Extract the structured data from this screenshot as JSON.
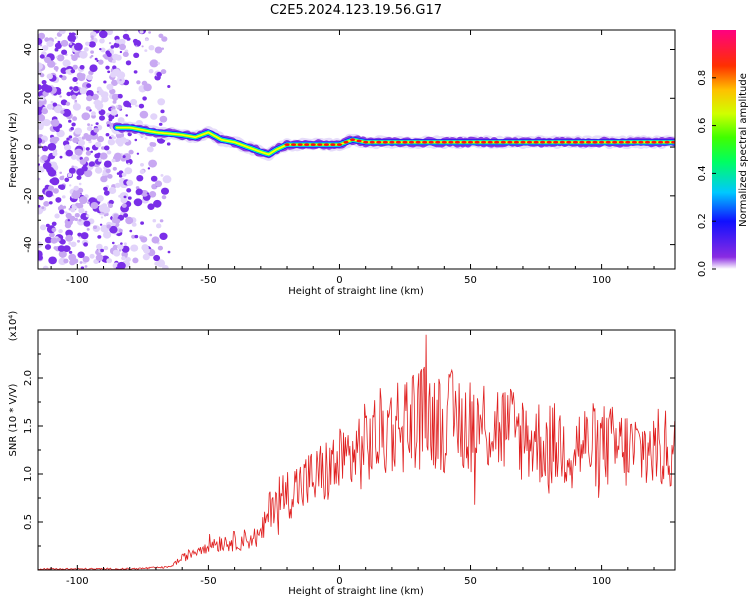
{
  "title": "C2E5.2024.123.19.56.G17",
  "chart_data": [
    {
      "type": "heatmap",
      "xlabel": "Height of straight line (km)",
      "ylabel": "Frequency (Hz)",
      "xlim": [
        -115,
        128
      ],
      "ylim": [
        -50,
        48
      ],
      "x_ticks": [
        -100,
        -50,
        0,
        50,
        100
      ],
      "y_ticks": [
        -40,
        -20,
        0,
        20,
        40
      ],
      "grid": false,
      "ridge": {
        "description_points_x": [
          -85,
          -80,
          -70,
          -60,
          -55,
          -50,
          -45,
          -40,
          -35,
          -30,
          -27,
          -24,
          -20,
          -10,
          0,
          5,
          10,
          20,
          30,
          40,
          50,
          60,
          70,
          80,
          90,
          100,
          110,
          120,
          128
        ],
        "frequency_hz": [
          8,
          8,
          6,
          5,
          4,
          6,
          3,
          2,
          0,
          -2,
          -3,
          -1,
          1,
          1,
          1,
          3,
          2,
          2,
          2,
          2,
          2,
          2,
          2,
          2,
          2,
          2,
          2,
          2,
          2
        ]
      },
      "colorbar": {
        "label": "Normalized spectral amplitude",
        "ticks": [
          0.0,
          0.2,
          0.4,
          0.6,
          0.8
        ],
        "range": [
          0,
          1
        ]
      }
    },
    {
      "type": "line",
      "xlabel": "Height of straight line (km)",
      "ylabel": "SNR (10 * V/V)",
      "y_multiplier": "(x10⁴)",
      "xlim": [
        -115,
        128
      ],
      "ylim": [
        0,
        2.5
      ],
      "x_ticks": [
        -100,
        -50,
        0,
        50,
        100
      ],
      "y_ticks": [
        0.5,
        1.0,
        1.5,
        2.0
      ],
      "series": [
        {
          "color": "#e02020",
          "trend_x": [
            -115,
            -80,
            -65,
            -60,
            -50,
            -40,
            -30,
            -25,
            -20,
            -10,
            0,
            10,
            20,
            30,
            40,
            50,
            60,
            70,
            80,
            90,
            100,
            110,
            120,
            128
          ],
          "trend_y": [
            0.01,
            0.01,
            0.03,
            0.12,
            0.28,
            0.3,
            0.35,
            0.75,
            0.8,
            0.95,
            1.1,
            1.3,
            1.5,
            1.6,
            1.55,
            1.55,
            1.5,
            1.4,
            1.3,
            1.3,
            1.3,
            1.25,
            1.25,
            1.25
          ],
          "peak": {
            "x": 33,
            "y": 2.45
          }
        }
      ]
    }
  ]
}
